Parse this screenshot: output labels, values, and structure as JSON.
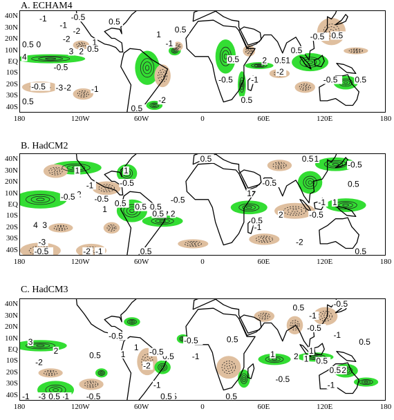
{
  "figure": {
    "lat_labels": [
      "40N",
      "30N",
      "20N",
      "10N",
      "EQ",
      "10S",
      "20S",
      "30S",
      "40S"
    ],
    "lon_labels": [
      "180",
      "120W",
      "60W",
      "0",
      "60E",
      "120E",
      "180"
    ],
    "colors": {
      "positive": "#33dd33",
      "negative": "#dfbf9f",
      "coast": "#000000",
      "contour": "#222222"
    }
  },
  "panels": [
    {
      "title": "A. ECHAM4",
      "labels": [
        {
          "text": "-1",
          "lon": -161,
          "lat": 36
        },
        {
          "text": "-0.5",
          "lon": -130,
          "lat": 37
        },
        {
          "text": "0.5",
          "lon": -93,
          "lat": 33
        },
        {
          "text": "-1",
          "lon": -141,
          "lat": 30
        },
        {
          "text": "-2",
          "lon": -128,
          "lat": 25
        },
        {
          "text": "0.5",
          "lon": -181,
          "lat": 13
        },
        {
          "text": "0",
          "lon": -164,
          "lat": 13
        },
        {
          "text": "-2",
          "lon": -138,
          "lat": 18
        },
        {
          "text": "1",
          "lon": -109,
          "lat": 15
        },
        {
          "text": "4",
          "lon": -178,
          "lat": 2
        },
        {
          "text": "3",
          "lon": -132,
          "lat": 7
        },
        {
          "text": "2",
          "lon": -122,
          "lat": 7
        },
        {
          "text": "-0.5",
          "lon": -147,
          "lat": -7
        },
        {
          "text": "0.5",
          "lon": -114,
          "lat": 9
        },
        {
          "text": "0.5",
          "lon": -28,
          "lat": 26
        },
        {
          "text": "1",
          "lon": -46,
          "lat": 22
        },
        {
          "text": "-1",
          "lon": -37,
          "lat": 14
        },
        {
          "text": "-0.5",
          "lon": -169,
          "lat": -24
        },
        {
          "text": "-3",
          "lon": -145,
          "lat": -25
        },
        {
          "text": "-2",
          "lon": -137,
          "lat": -25
        },
        {
          "text": "-1",
          "lon": -110,
          "lat": -26
        },
        {
          "text": "0.5",
          "lon": -181,
          "lat": -37
        },
        {
          "text": "-2",
          "lon": -44,
          "lat": -36
        },
        {
          "text": "1",
          "lon": -67,
          "lat": -44
        },
        {
          "text": "0.5",
          "lon": -71,
          "lat": -57
        },
        {
          "text": "0.5",
          "lon": 24,
          "lat": 0
        },
        {
          "text": "-0.5",
          "lon": 15,
          "lat": -18
        },
        {
          "text": "2",
          "lon": 58,
          "lat": -1
        },
        {
          "text": "0.5",
          "lon": 70,
          "lat": -1
        },
        {
          "text": "1",
          "lon": 81,
          "lat": -1
        },
        {
          "text": "-2",
          "lon": 72,
          "lat": -11
        },
        {
          "text": "-1",
          "lon": 47,
          "lat": -18
        },
        {
          "text": "0.5",
          "lon": 37,
          "lat": -36
        },
        {
          "text": "-0.5",
          "lon": 105,
          "lat": 20
        },
        {
          "text": "0.5",
          "lon": 126,
          "lat": 21
        },
        {
          "text": "0.5",
          "lon": 86,
          "lat": 8
        },
        {
          "text": "0.5",
          "lon": 149,
          "lat": -18
        },
        {
          "text": "-0.5",
          "lon": 118,
          "lat": -18
        }
      ]
    },
    {
      "title": "B. HadCM2",
      "labels": [
        {
          "text": "0.5",
          "lon": -3,
          "lat": 43
        },
        {
          "text": "0.5",
          "lon": 97,
          "lat": 40
        },
        {
          "text": "1",
          "lon": 109,
          "lat": 40
        },
        {
          "text": "-0.5",
          "lon": 142,
          "lat": 33
        },
        {
          "text": "1",
          "lon": -126,
          "lat": 28
        },
        {
          "text": "1",
          "lon": -78,
          "lat": 28
        },
        {
          "text": "-1",
          "lon": -115,
          "lat": 15
        },
        {
          "text": "-0.5",
          "lon": -82,
          "lat": 17
        },
        {
          "text": "0.5",
          "lon": 142,
          "lat": 16
        },
        {
          "text": "-2",
          "lon": -127,
          "lat": 7
        },
        {
          "text": "-0.5",
          "lon": -140,
          "lat": 5
        },
        {
          "text": "-0.5",
          "lon": -107,
          "lat": 3
        },
        {
          "text": "-0.5",
          "lon": -32,
          "lat": 2
        },
        {
          "text": "-0.5",
          "lon": -55,
          "lat": -4
        },
        {
          "text": "0.5",
          "lon": -67,
          "lat": -4
        },
        {
          "text": "0.5",
          "lon": -87,
          "lat": -1
        },
        {
          "text": "1",
          "lon": -99,
          "lat": -6
        },
        {
          "text": "0.5",
          "lon": -50,
          "lat": -10
        },
        {
          "text": "2",
          "lon": -32,
          "lat": -10
        },
        {
          "text": "1",
          "lon": 43,
          "lat": 8
        },
        {
          "text": "-0.5",
          "lon": 58,
          "lat": 17
        },
        {
          "text": "1",
          "lon": 127,
          "lat": 0
        },
        {
          "text": "-1",
          "lon": 113,
          "lat": 0
        },
        {
          "text": "-0.5",
          "lon": 104,
          "lat": -11
        },
        {
          "text": "2",
          "lon": 74,
          "lat": -11
        },
        {
          "text": "0.5",
          "lon": 47,
          "lat": -16
        },
        {
          "text": "-1",
          "lon": 50,
          "lat": -22
        },
        {
          "text": "-2",
          "lon": 91,
          "lat": -35
        },
        {
          "text": "4",
          "lon": -167,
          "lat": -20
        },
        {
          "text": "3",
          "lon": -158,
          "lat": -20
        },
        {
          "text": "-3",
          "lon": -162,
          "lat": -35
        },
        {
          "text": "-0.5",
          "lon": -166,
          "lat": -47
        },
        {
          "text": "-2",
          "lon": -118,
          "lat": -48
        },
        {
          "text": "-1",
          "lon": -106,
          "lat": -56
        },
        {
          "text": "0.5",
          "lon": -62,
          "lat": -77
        },
        {
          "text": "0.5",
          "lon": 149,
          "lat": -60
        }
      ]
    },
    {
      "title": "C. HadCM3",
      "labels": [
        {
          "text": "-0.5",
          "lon": 128,
          "lat": 52
        },
        {
          "text": "0.5",
          "lon": 88,
          "lat": 35
        },
        {
          "text": "-1",
          "lon": 104,
          "lat": 28
        },
        {
          "text": "-0.5",
          "lon": 102,
          "lat": 17
        },
        {
          "text": "-1",
          "lon": 128,
          "lat": 11
        },
        {
          "text": "-0.5",
          "lon": -93,
          "lat": 10
        },
        {
          "text": "3",
          "lon": -172,
          "lat": 5
        },
        {
          "text": "2",
          "lon": -147,
          "lat": -3
        },
        {
          "text": "0.5",
          "lon": -112,
          "lat": -7
        },
        {
          "text": "1",
          "lon": -81,
          "lat": -6
        },
        {
          "text": "-0.5",
          "lon": -19,
          "lat": 6
        },
        {
          "text": "-1",
          "lon": -11,
          "lat": -8
        },
        {
          "text": "0.5",
          "lon": -40,
          "lat": -8
        },
        {
          "text": "-0.5",
          "lon": -53,
          "lat": -4
        },
        {
          "text": "1",
          "lon": -68,
          "lat": 0
        },
        {
          "text": "-2",
          "lon": -59,
          "lat": -16
        },
        {
          "text": "-2",
          "lon": -165,
          "lat": -13
        },
        {
          "text": "-1",
          "lon": -49,
          "lat": -33
        },
        {
          "text": "-0.5",
          "lon": -40,
          "lat": -44
        },
        {
          "text": "0.5",
          "lon": -42,
          "lat": -65
        },
        {
          "text": "0.5",
          "lon": 23,
          "lat": 7
        },
        {
          "text": "1",
          "lon": 66,
          "lat": -6
        },
        {
          "text": "2",
          "lon": 89,
          "lat": -8
        },
        {
          "text": "1",
          "lon": 99,
          "lat": -10
        },
        {
          "text": "0.5",
          "lon": 111,
          "lat": -12
        },
        {
          "text": "1",
          "lon": 104,
          "lat": -3
        },
        {
          "text": "-0.5",
          "lon": 71,
          "lat": -28
        },
        {
          "text": "0.5",
          "lon": 124,
          "lat": -20
        },
        {
          "text": "2",
          "lon": 136,
          "lat": -20
        },
        {
          "text": "-1",
          "lon": 122,
          "lat": -33
        },
        {
          "text": "0.5",
          "lon": 153,
          "lat": 5
        },
        {
          "text": "-1",
          "lon": -178,
          "lat": -50
        },
        {
          "text": "-3",
          "lon": -162,
          "lat": -47
        },
        {
          "text": "-1",
          "lon": -139,
          "lat": -57
        },
        {
          "text": "-0.5",
          "lon": -115,
          "lat": -65
        },
        {
          "text": "0.5",
          "lon": -152,
          "lat": -75
        },
        {
          "text": "0.5",
          "lon": 22,
          "lat": -67
        }
      ]
    }
  ]
}
